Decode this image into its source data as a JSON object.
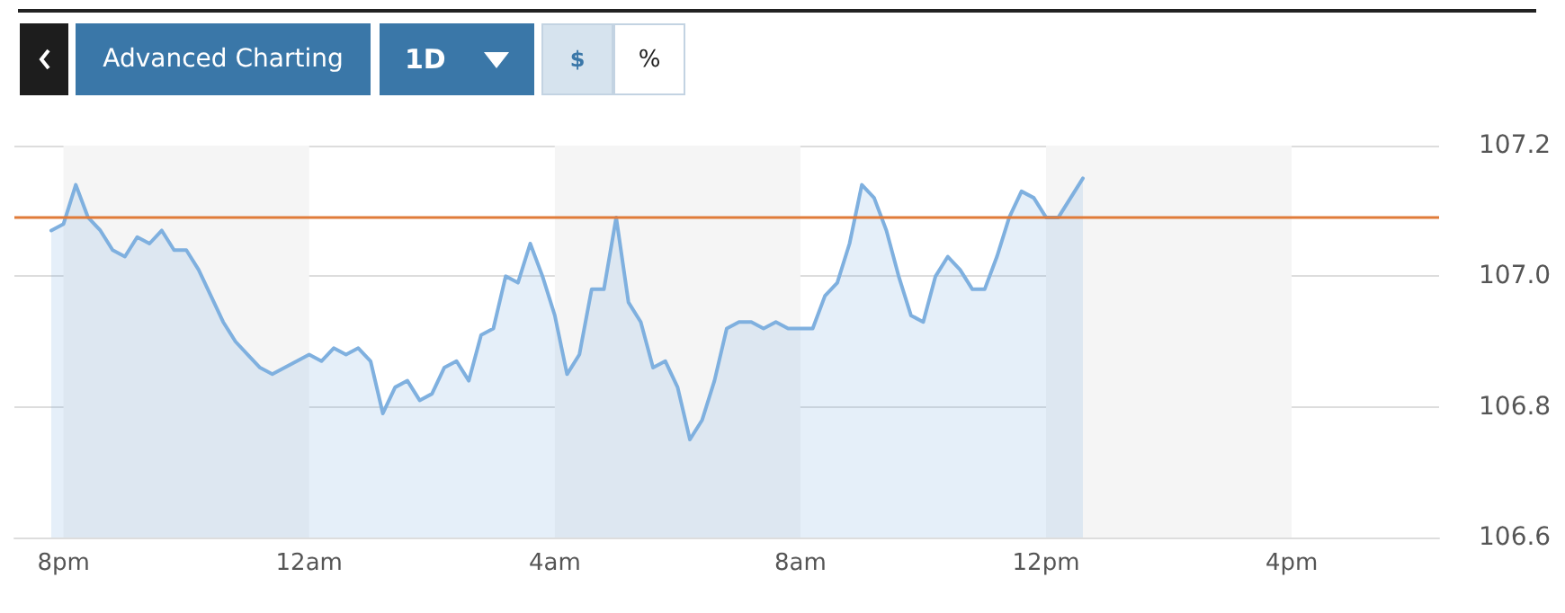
{
  "chart_data": {
    "type": "area",
    "annotations": [
      "Advanced Charting",
      "1D",
      "$",
      "%"
    ],
    "categories": [
      null,
      null,
      null,
      null,
      "8pm",
      null,
      null,
      null,
      null,
      null,
      null,
      null,
      null,
      null,
      null,
      null,
      null,
      null,
      null,
      null,
      null,
      null,
      null,
      null,
      "12am",
      null,
      null,
      null,
      null,
      null,
      null,
      null,
      null,
      null,
      null,
      null,
      null,
      null,
      null,
      null,
      null,
      null,
      null,
      null,
      "4am",
      null,
      null,
      null,
      null,
      null,
      null,
      null,
      null,
      null,
      null,
      null,
      null,
      null,
      null,
      null,
      null,
      null,
      null,
      null,
      "8am",
      null,
      null,
      null,
      null,
      null,
      null,
      null,
      null,
      null,
      null,
      null,
      null,
      null,
      null,
      null,
      null,
      null,
      null,
      null,
      "12pm",
      null,
      null,
      null,
      null,
      null,
      null,
      null,
      null,
      null,
      null,
      null,
      null,
      null,
      null,
      null,
      null,
      null,
      null,
      null,
      "4pm",
      null,
      null,
      null,
      null,
      null,
      null,
      null,
      null,
      null,
      null,
      null,
      null
    ],
    "ylim": [
      106.6,
      107.2
    ],
    "yticks": [
      {
        "value": 106.6,
        "label": "106.6"
      },
      {
        "value": 106.8,
        "label": "106.8"
      },
      {
        "value": 107.0,
        "label": "107.0"
      },
      {
        "value": 107.2,
        "label": "107.2"
      }
    ],
    "grid": "y",
    "marker": "none",
    "line_style": "solid",
    "ref_lines": [
      {
        "axis": "y",
        "value": 107.09,
        "color": "#e07b39"
      }
    ],
    "bands": [
      {
        "axis": "x",
        "from": "8pm",
        "to": "12am",
        "color": "#f5f5f5"
      },
      {
        "axis": "x",
        "from": "4am",
        "to": "8am",
        "color": "#f5f5f5"
      },
      {
        "axis": "x",
        "from": "12pm",
        "to": "4pm",
        "color": "#f5f5f5"
      }
    ],
    "series": [
      {
        "color": "#7fb0df",
        "values": [
          null,
          null,
          null,
          107.07,
          107.08,
          107.14,
          107.09,
          107.07,
          107.04,
          107.03,
          107.06,
          107.05,
          107.07,
          107.04,
          107.04,
          107.01,
          106.97,
          106.93,
          106.9,
          106.88,
          106.86,
          106.85,
          106.86,
          106.87,
          106.88,
          106.87,
          106.89,
          106.88,
          106.89,
          106.87,
          106.79,
          106.83,
          106.84,
          106.81,
          106.82,
          106.86,
          106.87,
          106.84,
          106.91,
          106.92,
          107.0,
          106.99,
          107.05,
          107.0,
          106.94,
          106.85,
          106.88,
          106.98,
          106.98,
          107.09,
          106.96,
          106.93,
          106.86,
          106.87,
          106.83,
          106.75,
          106.78,
          106.84,
          106.92,
          106.93,
          106.93,
          106.92,
          106.93,
          106.92,
          106.92,
          106.92,
          106.97,
          106.99,
          107.05,
          107.14,
          107.12,
          107.07,
          107.0,
          106.94,
          106.93,
          107.0,
          107.03,
          107.01,
          106.98,
          106.98,
          107.03,
          107.09,
          107.13,
          107.12,
          107.09,
          107.09,
          107.12,
          107.15,
          null,
          null,
          null,
          null,
          null,
          null,
          null,
          null,
          null,
          null,
          null,
          null,
          null,
          null,
          null,
          null,
          null,
          null,
          null,
          null,
          null,
          null,
          null,
          null,
          null,
          null,
          null,
          null,
          null
        ]
      }
    ]
  }
}
